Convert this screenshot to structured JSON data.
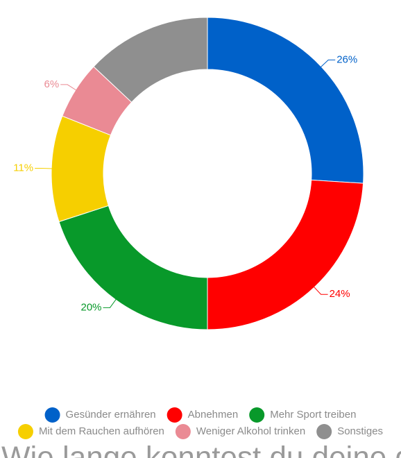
{
  "chart_data": {
    "type": "donut",
    "categories": [
      "Gesünder ernähren",
      "Abnehmen",
      "Mehr Sport treiben",
      "Mit dem Rauchen aufhören",
      "Weniger Alkohol trinken",
      "Sonstiges"
    ],
    "values": [
      26,
      24,
      20,
      11,
      6,
      13
    ],
    "value_labels": [
      "26%",
      "24%",
      "20%",
      "11%",
      "6%",
      null
    ],
    "colors": [
      "#0061c9",
      "#ff0000",
      "#08992a",
      "#f6cf00",
      "#ea8a94",
      "#8f8f8f"
    ],
    "legend": "bottom",
    "title": "Wie lange konntest du deine gute"
  }
}
